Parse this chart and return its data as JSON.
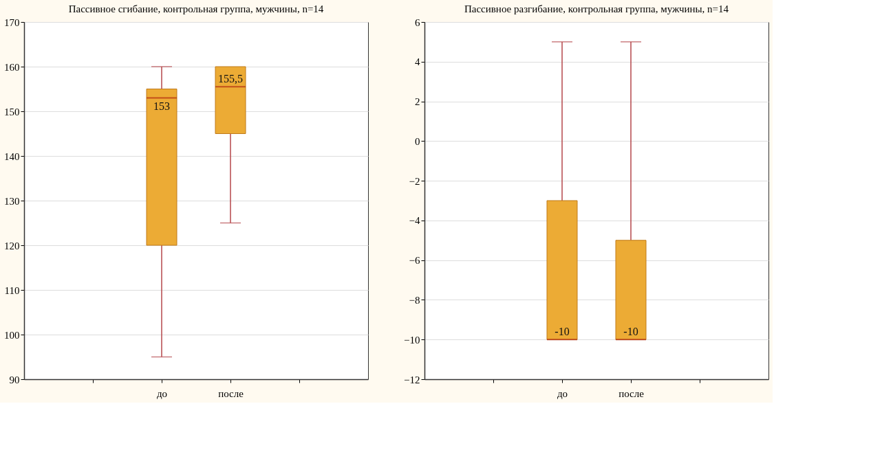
{
  "chart_data": [
    {
      "type": "box",
      "title": "Пассивное сгибание, контрольная группа, мужчины, n=14",
      "categories": [
        null,
        "до",
        "после",
        null
      ],
      "ylim": [
        90,
        170
      ],
      "yticks": [
        90,
        100,
        110,
        120,
        130,
        140,
        150,
        160,
        170
      ],
      "grid": "y",
      "series": [
        {
          "color": "#ecab35",
          "boxes": [
            null,
            {
              "low": 95,
              "q1": 120,
              "median": 153,
              "q3": 155,
              "high": 160
            },
            {
              "low": 125,
              "q1": 145,
              "median": 155.5,
              "q3": 160,
              "high": 160
            },
            null
          ]
        }
      ],
      "annotations": [
        {
          "text": "153",
          "x": "до",
          "y": 153
        },
        {
          "text": "155,5",
          "x": "после",
          "y": 155.5
        }
      ]
    },
    {
      "type": "box",
      "title": "Пассивное разгибание, контрольная группа, мужчины, n=14",
      "categories": [
        null,
        "до",
        "после",
        null
      ],
      "ylim": [
        -12,
        6
      ],
      "yticks": [
        -12,
        -10,
        -8,
        -6,
        -4,
        -2,
        0,
        2,
        4,
        6
      ],
      "grid": "y",
      "series": [
        {
          "color": "#ecab35",
          "boxes": [
            null,
            {
              "low": -10,
              "q1": -10,
              "median": -10,
              "q3": -3,
              "high": 5
            },
            {
              "low": -10,
              "q1": -10,
              "median": -10,
              "q3": -5,
              "high": 5
            },
            null
          ]
        }
      ],
      "annotations": [
        {
          "text": "-10",
          "x": "до",
          "y": -10
        },
        {
          "text": "-10",
          "x": "после",
          "y": -10
        }
      ]
    }
  ]
}
